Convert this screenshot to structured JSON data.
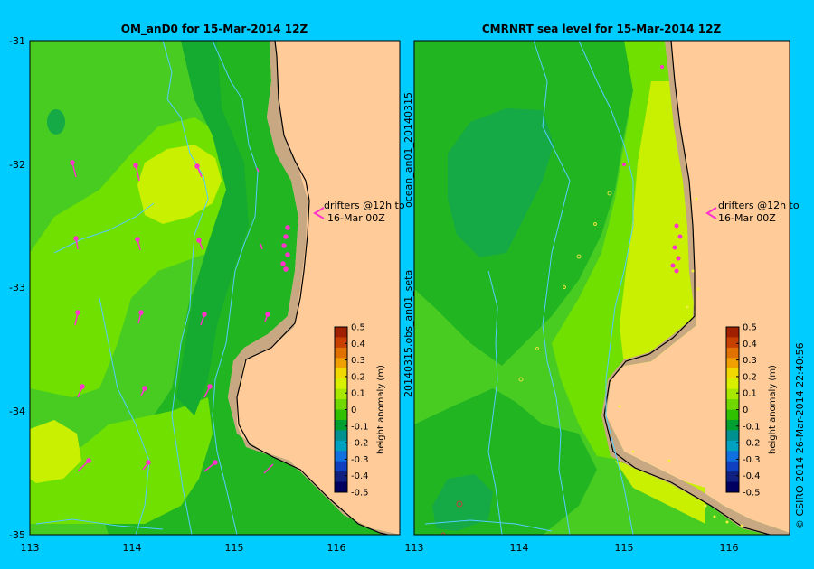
{
  "left_panel": {
    "title": "OM_anD0  for 15-Mar-2014 12Z",
    "x_ticks": [
      "113",
      "114",
      "115",
      "116"
    ],
    "y_ticks": [
      "-31",
      "-32",
      "-33",
      "-34",
      "-35"
    ],
    "annotation_line1": "drifters @12h to",
    "annotation_line2": "16-Mar 00Z"
  },
  "right_panel": {
    "title": "CMRNRT sea level  for 15-Mar-2014 12Z",
    "x_ticks": [
      "113",
      "114",
      "115",
      "116"
    ],
    "side_label_top": "ocean_an01_20140315",
    "side_label_bottom": "20140315.obs_an01_seta",
    "annotation_line1": "drifters @12h to",
    "annotation_line2": "16-Mar 00Z"
  },
  "colorbar": {
    "label": "height anomaly (m)",
    "ticks": [
      "0.5",
      "0.4",
      "0.3",
      "0.2",
      "0.1",
      "0",
      "-0.1",
      "-0.2",
      "-0.3",
      "-0.4",
      "-0.5"
    ],
    "colors": [
      "#a02000",
      "#c84000",
      "#e07000",
      "#f0a000",
      "#f0d800",
      "#d8f000",
      "#a8e800",
      "#70d800",
      "#30c000",
      "#00a030",
      "#009090",
      "#00a0c0",
      "#1070e0",
      "#1040c0",
      "#102080",
      "#000060"
    ]
  },
  "copyright": "© CSIRO 2014   26-Mar-2014 22:40:56",
  "colors": {
    "background": "#00ccff",
    "land": "#ffcc99",
    "shelf": "#c8a882",
    "drifter": "#ff33cc",
    "contour": "#55ccff"
  }
}
